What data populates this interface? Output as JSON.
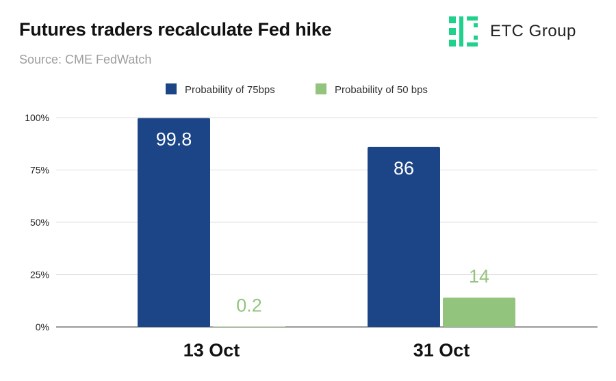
{
  "header": {
    "title": "Futures traders recalculate Fed hike",
    "subtitle": "Source: CME FedWatch"
  },
  "logo": {
    "text": "ETC Group",
    "color": "#1fd18b"
  },
  "chart_data": {
    "type": "bar",
    "title": "Futures traders recalculate Fed hike",
    "subtitle": "Source: CME FedWatch",
    "categories": [
      "13 Oct",
      "31 Oct"
    ],
    "series": [
      {
        "name": "Probability of 75bps",
        "values": [
          99.8,
          86
        ],
        "labels": [
          "99.8",
          "86"
        ],
        "color": "#1c4587",
        "label_color": "#ffffff"
      },
      {
        "name": "Probability of 50 bps",
        "values": [
          0.2,
          14
        ],
        "labels": [
          "0.2",
          "14"
        ],
        "color": "#93c47d",
        "label_color": "#93c47d"
      }
    ],
    "ylim": [
      0,
      100
    ],
    "yticks": [
      0,
      25,
      50,
      75,
      100
    ],
    "ytick_labels": [
      "0%",
      "25%",
      "50%",
      "75%",
      "100%"
    ],
    "xlabel": "",
    "ylabel": "",
    "grid": true,
    "legend": "top-center"
  }
}
